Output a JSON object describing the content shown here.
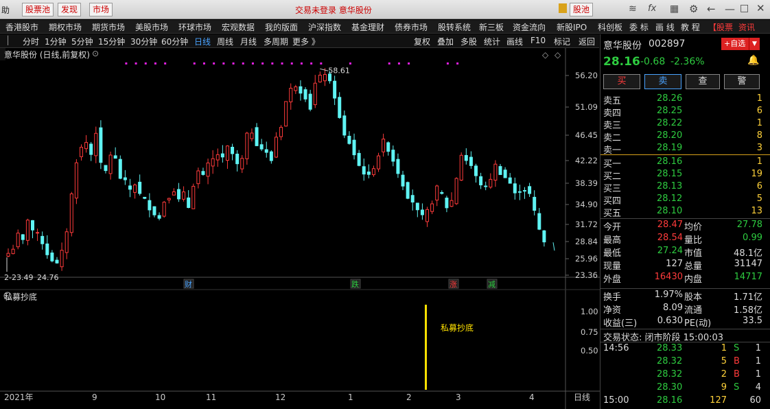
{
  "topbar": {
    "help_label": "助",
    "pool_label": "股票池",
    "discover_label": "发现",
    "market_label": "市场",
    "center_notice": "交易未登录  意华股份",
    "stock_pool_label": "股池"
  },
  "menu": {
    "items": [
      "香港股市",
      "期权市场",
      "期货市场",
      "美股市场",
      "环球市场",
      "宏观数据",
      "我的版面",
      "沪深指数",
      "基金理财",
      "债券市场",
      "股转系统",
      "新三板",
      "资金流向",
      "新股IPO",
      "科创板",
      "委 标",
      "画 线",
      "教 程"
    ],
    "extra1": "【股票",
    "extra2": "资讯"
  },
  "periods": {
    "items": [
      "分时",
      "1分钟",
      "5分钟",
      "15分钟",
      "30分钟",
      "60分钟",
      "日线",
      "周线",
      "月线",
      "多周期",
      "更多 》"
    ],
    "active": "日线",
    "right_items": [
      "复权",
      "叠加",
      "多股",
      "统计",
      "画线",
      "F10",
      "标记",
      "返回"
    ]
  },
  "chart_title": "意华股份 (日线,前复权)",
  "sub_title": "私募抄底",
  "sub_label": "私募抄底",
  "high_marker": "58.61",
  "low_marker": "24.76",
  "low_marker_prefix": "2-23.49",
  "events": [
    {
      "label": "财",
      "color": "#4aa3ff"
    },
    {
      "label": "跌",
      "color": "#2ecc40"
    },
    {
      "label": "涨",
      "color": "#ff3b3b"
    },
    {
      "label": "减",
      "color": "#2ecc40"
    }
  ],
  "chart_data": {
    "type": "candlestick",
    "ylim": [
      23.36,
      61.0
    ],
    "price_ticks": [
      "56.20",
      "51.09",
      "46.45",
      "42.22",
      "38.39",
      "34.90",
      "31.72",
      "28.84",
      "25.96",
      "23.36"
    ],
    "sub_ticks": [
      "1.00",
      "0.75",
      "0.50"
    ],
    "x_ticks": [
      "2021年",
      "9",
      "10",
      "11",
      "12",
      "1",
      "2",
      "3",
      "4"
    ],
    "period_label": "日线",
    "last_close": 28.16,
    "high": 58.61,
    "low": 24.76
  },
  "quote": {
    "name": "意华股份",
    "code": "002897",
    "add_label": "+自选",
    "price": "28.16",
    "change": "-0.68",
    "change_pct": "-2.36%",
    "buy_btn": "买",
    "sell_btn": "卖",
    "query_btn": "查",
    "alert_btn": "警",
    "asks": [
      {
        "label": "卖五",
        "price": "28.26",
        "vol": "1"
      },
      {
        "label": "卖四",
        "price": "28.25",
        "vol": "6"
      },
      {
        "label": "卖三",
        "price": "28.22",
        "vol": "1"
      },
      {
        "label": "卖二",
        "price": "28.20",
        "vol": "8"
      },
      {
        "label": "卖一",
        "price": "28.19",
        "vol": "3"
      }
    ],
    "bids": [
      {
        "label": "买一",
        "price": "28.16",
        "vol": "1"
      },
      {
        "label": "买二",
        "price": "28.15",
        "vol": "19"
      },
      {
        "label": "买三",
        "price": "28.13",
        "vol": "6"
      },
      {
        "label": "买四",
        "price": "28.12",
        "vol": "5"
      },
      {
        "label": "买五",
        "price": "28.10",
        "vol": "13"
      }
    ],
    "stats": [
      {
        "l1": "今开",
        "v1": "28.47",
        "c1": "#ff3b3b",
        "l2": "均价",
        "v2": "27.78",
        "c2": "#2ecc40"
      },
      {
        "l1": "最高",
        "v1": "28.54",
        "c1": "#ff3b3b",
        "l2": "量比",
        "v2": "0.99",
        "c2": "#2ecc40"
      },
      {
        "l1": "最低",
        "v1": "27.24",
        "c1": "#2ecc40",
        "l2": "市值",
        "v2": "48.1亿",
        "c2": "#ddd"
      },
      {
        "l1": "现量",
        "v1": "127",
        "c1": "#ddd",
        "l2": "总量",
        "v2": "31147",
        "c2": "#ddd"
      },
      {
        "l1": "外盘",
        "v1": "16430",
        "c1": "#ff3b3b",
        "l2": "内盘",
        "v2": "14717",
        "c2": "#2ecc40"
      }
    ],
    "stats2": [
      {
        "l1": "换手",
        "v1": "1.97%",
        "l2": "股本",
        "v2": "1.71亿"
      },
      {
        "l1": "净资",
        "v1": "8.09",
        "l2": "流通",
        "v2": "1.58亿"
      },
      {
        "l1": "收益(三)",
        "v1": "0.630",
        "l2": "PE(动)",
        "v2": "33.5"
      }
    ],
    "status": "交易状态: 闭市阶段 15:00:03",
    "ticks": [
      {
        "time": "14:56",
        "price": "28.33",
        "vol": "1",
        "side": "S",
        "n": "1"
      },
      {
        "time": "",
        "price": "28.32",
        "vol": "5",
        "side": "B",
        "n": "1"
      },
      {
        "time": "",
        "price": "28.32",
        "vol": "2",
        "side": "B",
        "n": "1"
      },
      {
        "time": "",
        "price": "28.30",
        "vol": "9",
        "side": "S",
        "n": "4"
      },
      {
        "time": "15:00",
        "price": "28.16",
        "vol": "127",
        "side": "",
        "n": "60"
      }
    ]
  }
}
